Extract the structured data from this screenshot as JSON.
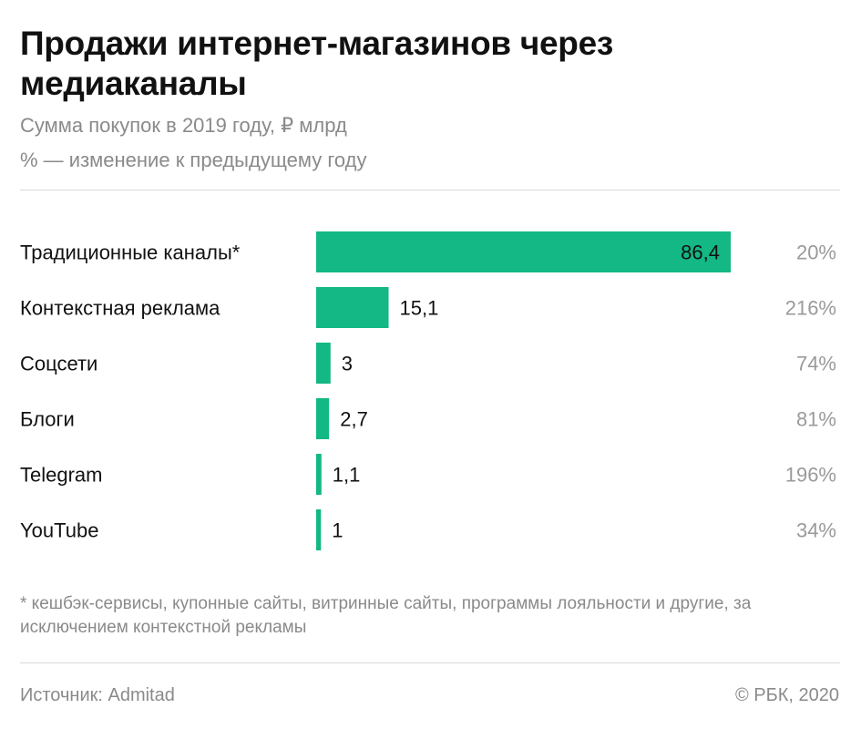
{
  "header": {
    "title": "Продажи интернет-магазинов через медиаканалы",
    "subtitle_line1": "Сумма покупок в 2019 году, ₽ млрд",
    "subtitle_line2": "% — изменение к предыдущему году"
  },
  "chart_data": {
    "type": "bar",
    "orientation": "horizontal",
    "categories": [
      "Традиционные каналы*",
      "Контекстная реклама",
      "Соцсети",
      "Блоги",
      "Telegram",
      "YouTube"
    ],
    "values": [
      86.4,
      15.1,
      3,
      2.7,
      1.1,
      1
    ],
    "value_labels": [
      "86,4",
      "15,1",
      "3",
      "2,7",
      "1,1",
      "1"
    ],
    "change_labels": [
      "20%",
      "216%",
      "74%",
      "81%",
      "196%",
      "34%"
    ],
    "title": "Продажи интернет-магазинов через медиаканалы",
    "subtitle": "Сумма покупок в 2019 году, ₽ млрд",
    "xlim": [
      0,
      86.4
    ],
    "grid": false,
    "bar_color": "#13b884"
  },
  "footnote": {
    "text": "* кешбэк-сервисы, купонные сайты, витринные сайты, программы лояльности и другие, за исключением контекстной рекламы"
  },
  "footer": {
    "source": "Источник: Admitad",
    "copyright": "© РБК, 2020"
  }
}
